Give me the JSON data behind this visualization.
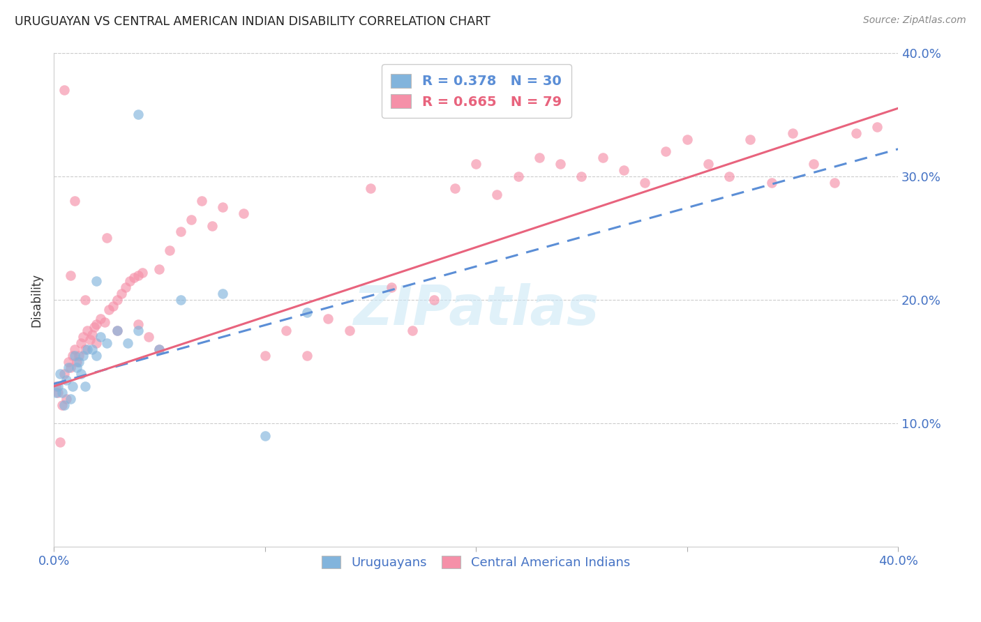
{
  "title": "URUGUAYAN VS CENTRAL AMERICAN INDIAN DISABILITY CORRELATION CHART",
  "source": "Source: ZipAtlas.com",
  "ylabel": "Disability",
  "watermark": "ZIPatlas",
  "xlim": [
    0.0,
    0.4
  ],
  "ylim": [
    0.0,
    0.4
  ],
  "right_ytick_labels": [
    "40.0%",
    "30.0%",
    "20.0%",
    "10.0%"
  ],
  "right_ytick_positions": [
    0.4,
    0.3,
    0.2,
    0.1
  ],
  "legend_blue_r": "0.378",
  "legend_blue_n": "30",
  "legend_pink_r": "0.665",
  "legend_pink_n": "79",
  "blue_color": "#82B4DC",
  "pink_color": "#F590A8",
  "blue_line_color": "#5B8ED6",
  "pink_line_color": "#E8637D",
  "uruguayans_x": [
    0.001,
    0.002,
    0.003,
    0.004,
    0.005,
    0.006,
    0.007,
    0.008,
    0.009,
    0.01,
    0.011,
    0.012,
    0.013,
    0.014,
    0.015,
    0.016,
    0.018,
    0.02,
    0.022,
    0.025,
    0.03,
    0.035,
    0.04,
    0.05,
    0.06,
    0.08,
    0.1,
    0.12,
    0.04,
    0.02
  ],
  "uruguayans_y": [
    0.125,
    0.13,
    0.14,
    0.125,
    0.115,
    0.135,
    0.145,
    0.12,
    0.13,
    0.155,
    0.145,
    0.15,
    0.14,
    0.155,
    0.13,
    0.16,
    0.16,
    0.155,
    0.17,
    0.165,
    0.175,
    0.165,
    0.175,
    0.16,
    0.2,
    0.205,
    0.09,
    0.19,
    0.35,
    0.215
  ],
  "central_american_x": [
    0.001,
    0.002,
    0.003,
    0.004,
    0.005,
    0.006,
    0.007,
    0.008,
    0.009,
    0.01,
    0.011,
    0.012,
    0.013,
    0.014,
    0.015,
    0.016,
    0.017,
    0.018,
    0.019,
    0.02,
    0.022,
    0.024,
    0.026,
    0.028,
    0.03,
    0.032,
    0.034,
    0.036,
    0.038,
    0.04,
    0.042,
    0.045,
    0.05,
    0.055,
    0.06,
    0.065,
    0.07,
    0.075,
    0.08,
    0.09,
    0.1,
    0.11,
    0.12,
    0.13,
    0.14,
    0.15,
    0.16,
    0.17,
    0.18,
    0.19,
    0.2,
    0.21,
    0.22,
    0.23,
    0.24,
    0.25,
    0.26,
    0.27,
    0.28,
    0.29,
    0.3,
    0.31,
    0.32,
    0.33,
    0.34,
    0.35,
    0.36,
    0.37,
    0.38,
    0.39,
    0.005,
    0.008,
    0.01,
    0.015,
    0.02,
    0.025,
    0.03,
    0.04,
    0.05
  ],
  "central_american_y": [
    0.13,
    0.125,
    0.085,
    0.115,
    0.14,
    0.12,
    0.15,
    0.145,
    0.155,
    0.16,
    0.15,
    0.155,
    0.165,
    0.17,
    0.16,
    0.175,
    0.168,
    0.172,
    0.178,
    0.18,
    0.185,
    0.182,
    0.192,
    0.195,
    0.2,
    0.205,
    0.21,
    0.215,
    0.218,
    0.22,
    0.222,
    0.17,
    0.225,
    0.24,
    0.255,
    0.265,
    0.28,
    0.26,
    0.275,
    0.27,
    0.155,
    0.175,
    0.155,
    0.185,
    0.175,
    0.29,
    0.21,
    0.175,
    0.2,
    0.29,
    0.31,
    0.285,
    0.3,
    0.315,
    0.31,
    0.3,
    0.315,
    0.305,
    0.295,
    0.32,
    0.33,
    0.31,
    0.3,
    0.33,
    0.295,
    0.335,
    0.31,
    0.295,
    0.335,
    0.34,
    0.37,
    0.22,
    0.28,
    0.2,
    0.165,
    0.25,
    0.175,
    0.18,
    0.16
  ],
  "blue_line_x": [
    0.0,
    0.4
  ],
  "blue_line_y": [
    0.132,
    0.322
  ],
  "pink_line_x": [
    0.0,
    0.4
  ],
  "pink_line_y": [
    0.13,
    0.355
  ]
}
